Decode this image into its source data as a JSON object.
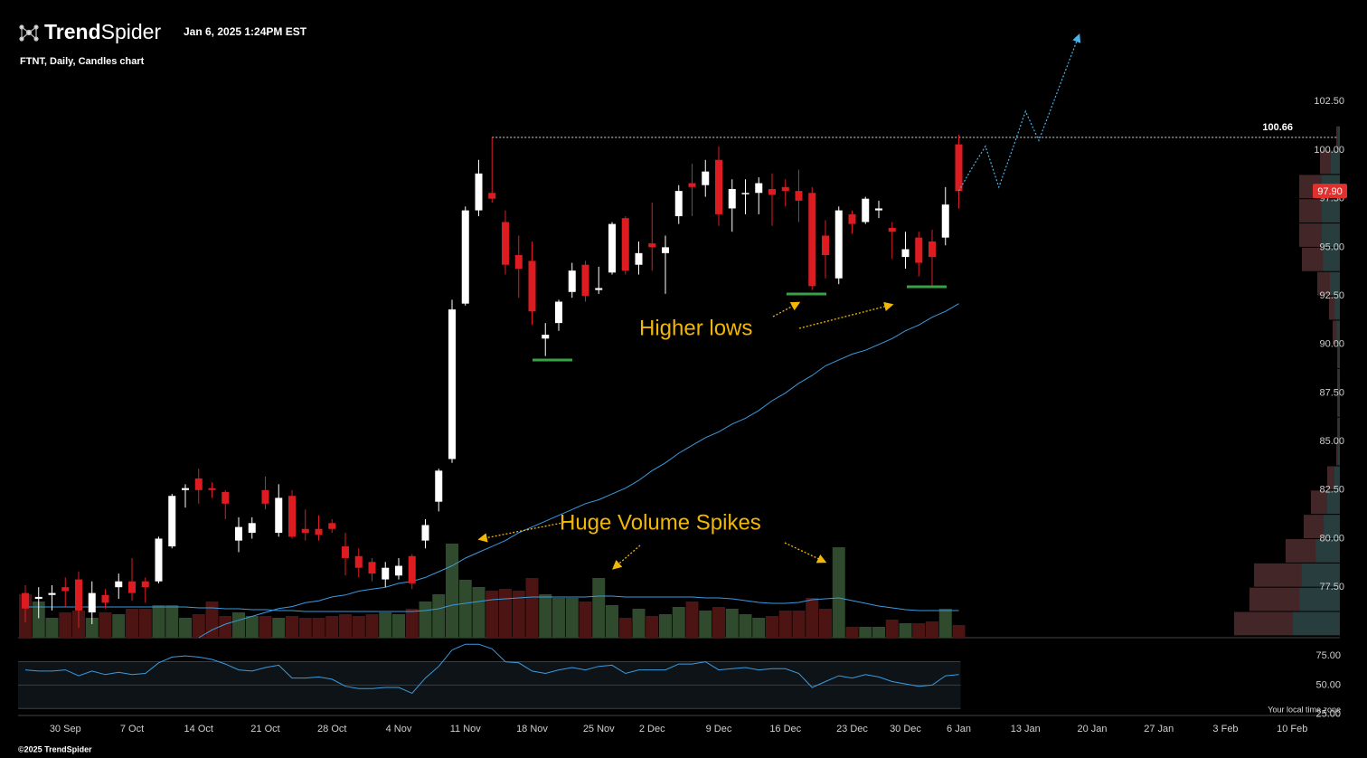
{
  "header": {
    "brand_bold": "Trend",
    "brand_light": "Spider",
    "timestamp": "Jan 6, 2025 1:24PM EST",
    "subtitle": "FTNT, Daily, Candles chart"
  },
  "chart_data": {
    "type": "candlestick",
    "categories": [
      null,
      null,
      null,
      "30 Sep",
      null,
      null,
      null,
      null,
      "7 Oct",
      null,
      null,
      null,
      null,
      "14 Oct",
      null,
      null,
      null,
      null,
      "21 Oct",
      null,
      null,
      null,
      null,
      "28 Oct",
      null,
      null,
      null,
      null,
      "4 Nov",
      null,
      null,
      null,
      null,
      "11 Nov",
      null,
      null,
      null,
      null,
      "18 Nov",
      null,
      null,
      null,
      null,
      "25 Nov",
      null,
      null,
      null,
      "2 Dec",
      null,
      null,
      null,
      null,
      "9 Dec",
      null,
      null,
      null,
      null,
      "16 Dec",
      null,
      null,
      null,
      null,
      "23 Dec",
      null,
      null,
      null,
      "30 Dec",
      null,
      null,
      null,
      "6 Jan",
      null,
      null,
      null,
      null,
      "13 Jan",
      null,
      null,
      null,
      null,
      "20 Jan",
      null,
      null,
      null,
      null,
      "27 Jan",
      null,
      null,
      null,
      null,
      "3 Feb",
      null,
      null,
      null,
      null,
      "10 Feb",
      null,
      null,
      null
    ],
    "open": [
      77.2,
      76.9,
      77.1,
      77.5,
      77.9,
      76.2,
      77.1,
      77.5,
      77.8,
      77.8,
      77.8,
      79.6,
      82.5,
      83.1,
      82.6,
      82.4,
      79.9,
      80.3,
      82.5,
      80.3,
      82.2,
      80.5,
      80.5,
      80.8,
      79.6,
      79.1,
      78.8,
      77.9,
      78.1,
      79.1,
      79.9,
      81.9,
      84.1,
      92.1,
      96.9,
      97.8,
      96.3,
      94.6,
      94.3,
      90.3,
      91.1,
      92.7,
      94.1,
      92.8,
      93.7,
      96.5,
      94.1,
      95.2,
      94.7,
      96.6,
      98.3,
      98.2,
      99.5,
      97.0,
      97.8,
      97.8,
      98.0,
      98.1,
      97.9,
      97.8,
      95.6,
      93.4,
      96.7,
      96.3,
      96.9,
      96.0,
      94.5,
      95.5,
      95.3,
      95.5,
      100.3,
      null,
      null,
      null,
      null,
      null,
      null,
      null,
      null,
      null,
      null,
      null,
      null,
      null,
      null,
      null,
      null,
      null,
      null,
      null,
      null,
      null,
      null,
      null,
      null,
      null,
      null,
      null,
      null
    ],
    "high": [
      77.6,
      77.5,
      77.6,
      78.0,
      78.3,
      77.8,
      77.4,
      78.2,
      79.0,
      78.0,
      80.1,
      82.3,
      82.8,
      83.6,
      82.9,
      82.5,
      81.1,
      81.1,
      83.2,
      82.8,
      82.5,
      81.5,
      81.2,
      81.0,
      80.3,
      79.5,
      79.0,
      78.8,
      79.0,
      79.2,
      81.0,
      83.6,
      92.3,
      97.1,
      99.5,
      100.66,
      96.9,
      95.6,
      95.3,
      91.1,
      92.3,
      94.2,
      94.3,
      94.0,
      96.3,
      96.6,
      95.3,
      97.3,
      95.6,
      98.2,
      99.3,
      99.5,
      100.2,
      98.5,
      98.5,
      98.6,
      98.8,
      98.5,
      99.0,
      98.1,
      96.4,
      97.1,
      96.9,
      97.6,
      97.4,
      96.3,
      95.8,
      95.8,
      95.9,
      98.1,
      100.8,
      null,
      null,
      null,
      null,
      null,
      null,
      null,
      null,
      null,
      null,
      null,
      null,
      null,
      null,
      null,
      null,
      null,
      null,
      null,
      null,
      null,
      null,
      null,
      null,
      null,
      null,
      null,
      null
    ],
    "low": [
      75.7,
      75.9,
      76.3,
      76.5,
      75.4,
      75.6,
      76.4,
      76.9,
      76.8,
      76.7,
      77.7,
      79.5,
      81.6,
      81.8,
      82.1,
      81.0,
      79.3,
      80.0,
      81.5,
      80.1,
      80.0,
      79.9,
      79.9,
      80.3,
      78.1,
      78.0,
      77.8,
      77.5,
      77.9,
      77.4,
      79.5,
      81.4,
      83.9,
      92.0,
      96.6,
      97.3,
      93.6,
      92.4,
      91.0,
      89.4,
      90.7,
      92.4,
      92.2,
      92.6,
      93.6,
      93.6,
      93.6,
      93.8,
      92.6,
      96.2,
      96.6,
      97.6,
      96.1,
      95.8,
      96.7,
      96.7,
      96.1,
      97.1,
      96.3,
      92.8,
      93.4,
      93.1,
      95.7,
      96.2,
      96.5,
      94.4,
      93.9,
      93.5,
      93.0,
      95.1,
      97.0,
      null,
      null,
      null,
      null,
      null,
      null,
      null,
      null,
      null,
      null,
      null,
      null,
      null,
      null,
      null,
      null,
      null,
      null,
      null,
      null,
      null,
      null,
      null,
      null,
      null,
      null,
      null,
      null
    ],
    "close": [
      76.4,
      77.0,
      77.2,
      77.3,
      76.3,
      77.2,
      76.7,
      77.8,
      77.2,
      77.5,
      80.0,
      82.2,
      82.6,
      82.5,
      82.5,
      81.8,
      80.6,
      80.8,
      81.8,
      82.1,
      80.1,
      80.3,
      80.2,
      80.5,
      79.0,
      78.5,
      78.2,
      78.5,
      78.6,
      77.7,
      80.7,
      83.5,
      91.8,
      96.9,
      98.8,
      97.5,
      94.1,
      93.9,
      91.7,
      90.5,
      92.2,
      93.8,
      92.5,
      92.9,
      96.2,
      93.8,
      94.7,
      95.0,
      95.0,
      97.9,
      98.1,
      98.9,
      96.7,
      98.0,
      97.8,
      98.3,
      97.7,
      97.9,
      97.4,
      93.0,
      94.6,
      96.9,
      96.2,
      97.5,
      97.0,
      95.8,
      94.9,
      94.2,
      94.5,
      97.2,
      97.9,
      null,
      null,
      null,
      null,
      null,
      null,
      null,
      null,
      null,
      null,
      null,
      null,
      null,
      null,
      null,
      null,
      null,
      null,
      null,
      null,
      null,
      null,
      null,
      null,
      null,
      null,
      null,
      null
    ],
    "sma": [
      null,
      null,
      null,
      null,
      null,
      null,
      null,
      null,
      null,
      null,
      null,
      null,
      null,
      74.9,
      75.3,
      75.6,
      75.8,
      76.0,
      76.2,
      76.4,
      76.5,
      76.7,
      76.8,
      77.0,
      77.1,
      77.3,
      77.4,
      77.5,
      77.7,
      77.8,
      78.0,
      78.3,
      78.6,
      79.0,
      79.3,
      79.6,
      79.9,
      80.3,
      80.6,
      80.9,
      81.2,
      81.5,
      81.8,
      82.0,
      82.3,
      82.6,
      83.0,
      83.5,
      83.9,
      84.4,
      84.8,
      85.2,
      85.5,
      85.9,
      86.2,
      86.6,
      87.1,
      87.5,
      88.0,
      88.4,
      88.9,
      89.2,
      89.5,
      89.7,
      90.0,
      90.3,
      90.7,
      91.0,
      91.4,
      91.7,
      92.1,
      null,
      null,
      null,
      null,
      null,
      null,
      null,
      null,
      null,
      null,
      null,
      null,
      null,
      null,
      null,
      null,
      null,
      null,
      null,
      null,
      null,
      null,
      null,
      null,
      null,
      null,
      null,
      null
    ],
    "projection": [
      null,
      null,
      null,
      null,
      null,
      null,
      null,
      null,
      null,
      null,
      null,
      null,
      null,
      null,
      null,
      null,
      null,
      null,
      null,
      null,
      null,
      null,
      null,
      null,
      null,
      null,
      null,
      null,
      null,
      null,
      null,
      null,
      null,
      null,
      null,
      null,
      null,
      null,
      null,
      null,
      null,
      null,
      null,
      null,
      null,
      null,
      null,
      null,
      null,
      null,
      null,
      null,
      null,
      null,
      null,
      null,
      null,
      null,
      null,
      null,
      null,
      null,
      null,
      null,
      null,
      null,
      null,
      null,
      null,
      null,
      97.9,
      99.1,
      100.2,
      98.1,
      100.0,
      102.0,
      100.5,
      102.3,
      104.1,
      105.9,
      null,
      null,
      null,
      null,
      null,
      null,
      null,
      null,
      null,
      null,
      null,
      null,
      null,
      null,
      null,
      null,
      null,
      null,
      null
    ],
    "volume": [
      4.8,
      4.0,
      2.2,
      2.8,
      3.0,
      2.2,
      2.8,
      2.6,
      3.2,
      3.2,
      3.6,
      3.6,
      2.2,
      2.6,
      4.0,
      2.4,
      2.8,
      2.4,
      2.4,
      2.2,
      2.4,
      2.2,
      2.2,
      2.4,
      2.6,
      2.4,
      2.6,
      2.8,
      2.6,
      3.2,
      4.0,
      4.8,
      10.4,
      6.4,
      5.6,
      5.2,
      5.4,
      5.2,
      6.6,
      4.8,
      4.4,
      4.4,
      4.0,
      6.6,
      3.6,
      2.2,
      3.2,
      2.4,
      2.6,
      3.4,
      4.0,
      3.0,
      3.4,
      3.2,
      2.6,
      2.2,
      2.4,
      3.0,
      3.0,
      4.4,
      3.2,
      10.0,
      1.2,
      1.2,
      1.2,
      2.0,
      1.6,
      1.6,
      1.8,
      3.2,
      1.4,
      null,
      null,
      null,
      null,
      null,
      null,
      null,
      null,
      null,
      null,
      null,
      null,
      null,
      null,
      null,
      null,
      null,
      null,
      null,
      null,
      null,
      null,
      null,
      null,
      null,
      null,
      null,
      null
    ],
    "volume_ma": [
      3.4,
      3.4,
      3.4,
      3.4,
      3.4,
      3.4,
      3.4,
      3.4,
      3.4,
      3.4,
      3.4,
      3.4,
      3.4,
      3.3,
      3.3,
      3.2,
      3.2,
      3.1,
      3.1,
      3.0,
      3.0,
      2.9,
      2.9,
      2.9,
      2.9,
      2.9,
      2.9,
      2.9,
      2.9,
      2.9,
      3.0,
      3.2,
      3.6,
      3.8,
      4.0,
      4.2,
      4.3,
      4.4,
      4.5,
      4.5,
      4.5,
      4.5,
      4.5,
      4.6,
      4.6,
      4.5,
      4.5,
      4.5,
      4.5,
      4.5,
      4.5,
      4.4,
      4.4,
      4.3,
      4.1,
      3.9,
      3.8,
      3.8,
      3.9,
      4.2,
      4.3,
      4.4,
      4.1,
      3.8,
      3.5,
      3.3,
      3.1,
      3.0,
      3.0,
      3.0,
      3.0,
      null,
      null,
      null,
      null,
      null,
      null,
      null,
      null,
      null,
      null,
      null,
      null,
      null,
      null,
      null,
      null,
      null,
      null,
      null,
      null,
      null,
      null,
      null,
      null,
      null,
      null,
      null,
      null
    ],
    "rsi": [
      63,
      62,
      62,
      63,
      58,
      62,
      59,
      61,
      59,
      60,
      69,
      74,
      75,
      74,
      72,
      68,
      63,
      62,
      65,
      67,
      56,
      56,
      57,
      55,
      49,
      47,
      47,
      48,
      48,
      43,
      56,
      66,
      80,
      85,
      85,
      81,
      70,
      69,
      62,
      60,
      63,
      65,
      63,
      66,
      67,
      60,
      63,
      63,
      63,
      68,
      68,
      70,
      63,
      64,
      65,
      63,
      64,
      64,
      60,
      48,
      53,
      58,
      56,
      59,
      57,
      53,
      51,
      49,
      50,
      58,
      59,
      null,
      null,
      null,
      null,
      null,
      null,
      null,
      null,
      null,
      null,
      null,
      null,
      null,
      null,
      null,
      null,
      null,
      null,
      null,
      null,
      null,
      null,
      null,
      null,
      null,
      null,
      null,
      null
    ],
    "ylim": [
      74.9,
      106.8
    ],
    "yticks": [
      {
        "value": 77.5,
        "label": "77.50"
      },
      {
        "value": 80,
        "label": "80.00"
      },
      {
        "value": 82.5,
        "label": "82.50"
      },
      {
        "value": 85,
        "label": "85.00"
      },
      {
        "value": 87.5,
        "label": "87.50"
      },
      {
        "value": 90,
        "label": "90.00"
      },
      {
        "value": 92.5,
        "label": "92.50"
      },
      {
        "value": 95,
        "label": "95.00"
      },
      {
        "value": 97.5,
        "label": "97.50"
      },
      {
        "value": 100,
        "label": "100.00"
      },
      {
        "value": 102.5,
        "label": "102.50"
      }
    ],
    "volume_ylim": [
      0,
      12.5
    ],
    "rsi_ylim": [
      24,
      89
    ],
    "rsi_yticks": [
      {
        "value": 75,
        "label": "75.00"
      },
      {
        "value": 50,
        "label": "50.00"
      },
      {
        "value": 25,
        "label": "25.00"
      }
    ],
    "rsi_band": [
      30,
      70
    ],
    "resistance": 100.66,
    "last_price": {
      "value": 97.9,
      "label": "97.90"
    },
    "volume_profile": {
      "bins": [
        75,
        76.25,
        77.5,
        78.75,
        80,
        81.25,
        82.5,
        83.75,
        85,
        86.25,
        87.5,
        88.75,
        90,
        91.25,
        92.5,
        93.75,
        95,
        96.25,
        97.5,
        98.75,
        100,
        101.25
      ],
      "values": [
        117,
        100,
        95,
        60,
        40,
        32,
        14,
        4,
        3,
        3,
        3,
        3,
        8,
        12,
        25,
        42,
        45,
        45,
        45,
        22,
        4
      ],
      "xlim": [
        0,
        120
      ]
    },
    "up_color": "#ffffff",
    "down_color": "#dd1c22",
    "volume_up_color": "#2f4a2c",
    "volume_down_color": "#4d1414",
    "sma_color": "#3a9be0",
    "rsi_color": "#3a9be0",
    "projection_color": "#4ab4e6",
    "annotations": {
      "higher_lows": "Higher lows",
      "volume_spikes": "Huge Volume Spikes"
    }
  },
  "footer": {
    "copyright": "©2025 TrendSpider",
    "timezone": "Your local time zone"
  }
}
